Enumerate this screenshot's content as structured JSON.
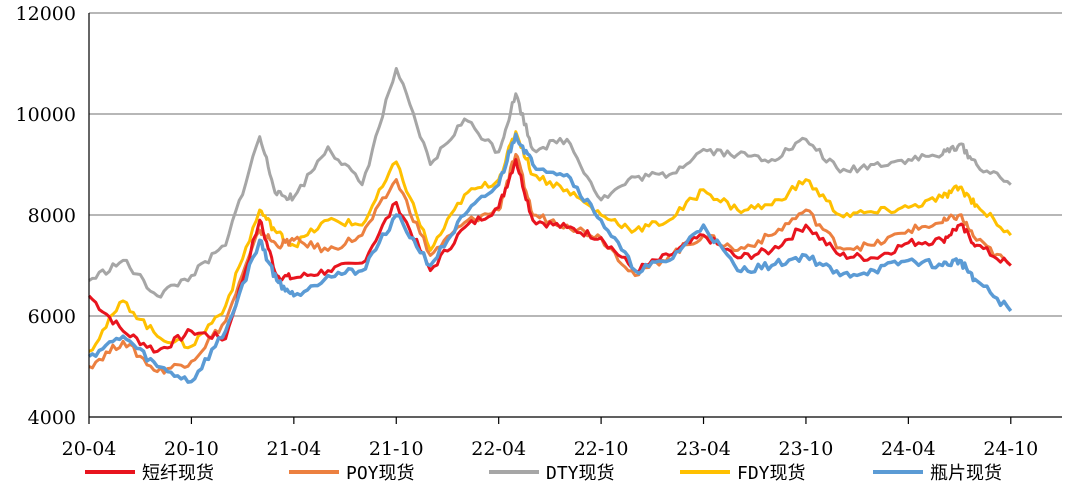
{
  "chart_data": {
    "type": "line",
    "title": "",
    "xlabel": "",
    "ylabel": "",
    "ylim": [
      4000,
      12000
    ],
    "yticks": [
      4000,
      6000,
      8000,
      10000,
      12000
    ],
    "xticks": [
      "20-04",
      "20-10",
      "21-04",
      "21-10",
      "22-04",
      "22-10",
      "23-04",
      "23-10",
      "24-04",
      "24-10"
    ],
    "grid": "horizontal",
    "legend": "bottom",
    "x": [
      "20-04",
      "20-06",
      "20-08",
      "20-10",
      "20-12",
      "21-02",
      "21-03",
      "21-04",
      "21-06",
      "21-08",
      "21-10",
      "21-12",
      "22-02",
      "22-04",
      "22-05",
      "22-06",
      "22-08",
      "22-10",
      "22-12",
      "23-02",
      "23-04",
      "23-06",
      "23-08",
      "23-10",
      "23-12",
      "24-02",
      "24-04",
      "24-06",
      "24-07",
      "24-08",
      "24-10"
    ],
    "series": [
      {
        "name": "短纤现货",
        "color": "#e8141e",
        "values": [
          6400,
          5700,
          5300,
          5700,
          5550,
          7900,
          6800,
          6750,
          6900,
          7050,
          8250,
          6900,
          7750,
          8150,
          9100,
          7900,
          7750,
          7550,
          6900,
          7200,
          7600,
          7150,
          7300,
          7800,
          7200,
          7150,
          7450,
          7500,
          7800,
          7400,
          7000
        ]
      },
      {
        "name": "POY现货",
        "color": "#ec8040",
        "values": [
          5000,
          5500,
          4900,
          5100,
          5900,
          7700,
          7400,
          7500,
          7300,
          7600,
          8700,
          7200,
          7850,
          8100,
          9200,
          8000,
          7800,
          7550,
          6800,
          7200,
          7600,
          7300,
          7600,
          8100,
          7350,
          7400,
          7700,
          7850,
          8000,
          7500,
          7000
        ]
      },
      {
        "name": "DTY现货",
        "color": "#a6a6a6",
        "values": [
          6700,
          7100,
          6400,
          6800,
          7400,
          9550,
          8400,
          8350,
          9350,
          8600,
          10900,
          9000,
          9900,
          9250,
          10400,
          9300,
          9500,
          8300,
          8750,
          8800,
          9300,
          9200,
          9100,
          9500,
          8850,
          9000,
          9100,
          9200,
          9400,
          9000,
          8600
        ]
      },
      {
        "name": "FDY现货",
        "color": "#ffc000",
        "values": [
          5300,
          6300,
          5600,
          5400,
          6200,
          8100,
          7650,
          7400,
          7900,
          7800,
          9050,
          7300,
          8400,
          8700,
          9650,
          8800,
          8500,
          8000,
          7700,
          7900,
          8500,
          8100,
          8200,
          8700,
          8000,
          8050,
          8150,
          8350,
          8550,
          8200,
          7600
        ]
      },
      {
        "name": "瓶片现货",
        "color": "#5b9bd5",
        "values": [
          5200,
          5600,
          5000,
          4700,
          5700,
          7500,
          6700,
          6400,
          6800,
          6900,
          8000,
          7000,
          8000,
          8600,
          9600,
          9000,
          8800,
          7900,
          6900,
          7100,
          7800,
          6900,
          7000,
          7200,
          6800,
          6900,
          7100,
          7000,
          7100,
          6700,
          6100
        ]
      }
    ]
  }
}
